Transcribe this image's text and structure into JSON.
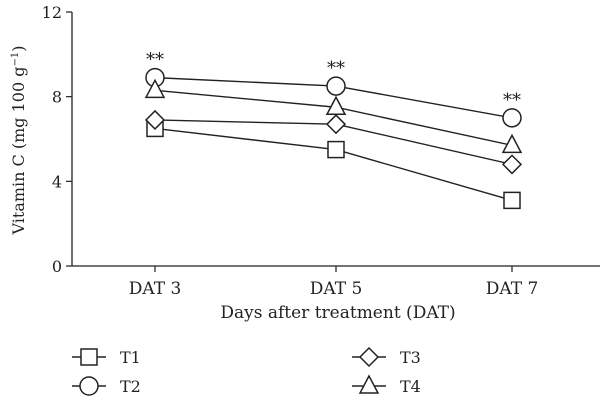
{
  "chart_data": {
    "type": "line",
    "categories": [
      "DAT 3",
      "DAT 5",
      "DAT 7"
    ],
    "xlabel": "Days after treatment (DAT)",
    "ylabel": "Vitamin C (mg 100 g",
    "ylabel_sup": "−1",
    "ylabel_close": ")",
    "ylim": [
      0,
      12
    ],
    "yticks": [
      "0",
      "4",
      "8",
      "12"
    ],
    "grid": false,
    "legend_position": "bottom",
    "series": [
      {
        "name": "T1",
        "marker": "square",
        "values": [
          6.5,
          5.5,
          3.1
        ],
        "errors": [
          0.15,
          0.15,
          0.15
        ]
      },
      {
        "name": "T2",
        "marker": "circle",
        "values": [
          8.9,
          8.5,
          7.0
        ],
        "errors": [
          0.25,
          0.3,
          0.15
        ]
      },
      {
        "name": "T3",
        "marker": "diamond",
        "values": [
          6.9,
          6.7,
          4.8
        ],
        "errors": [
          0.15,
          0.15,
          0.15
        ]
      },
      {
        "name": "T4",
        "marker": "triangle",
        "values": [
          8.3,
          7.5,
          5.7
        ],
        "errors": [
          0.2,
          0.2,
          0.15
        ]
      }
    ],
    "annotations": [
      {
        "text": "**",
        "category": "DAT 3",
        "value": 8.9
      },
      {
        "text": "**",
        "category": "DAT 5",
        "value": 8.5
      },
      {
        "text": "**",
        "category": "DAT 7",
        "value": 7.0
      }
    ],
    "line_color": "#222222",
    "marker_fill": "#ffffff"
  }
}
